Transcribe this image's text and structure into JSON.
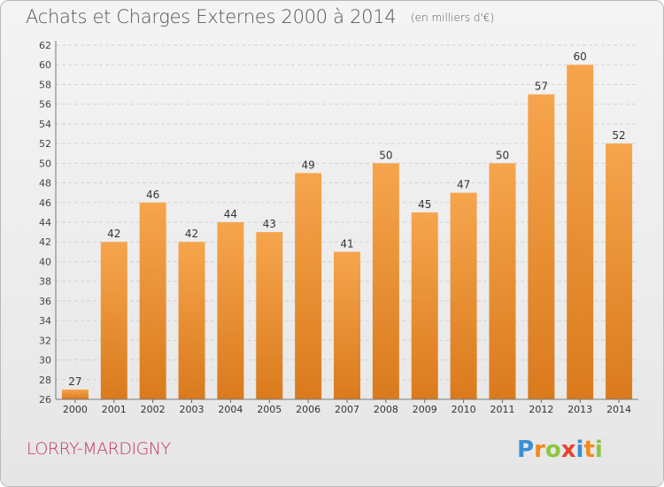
{
  "header": {
    "title": "Achats et Charges Externes 2000 à 2014",
    "unit": "(en milliers d'€)"
  },
  "footer": {
    "place": "LORRY-MARDIGNY",
    "logo_text": "Proxiti"
  },
  "colors": {
    "bar_top": "#f6a54d",
    "bar_bottom": "#da7a1d",
    "place_text": "#c8326a",
    "grid": "#d3d3d3"
  },
  "chart_data": {
    "type": "bar",
    "title": "Achats et Charges Externes 2000 à 2014",
    "subtitle": "(en milliers d'€)",
    "categories": [
      "2000",
      "2001",
      "2002",
      "2003",
      "2004",
      "2005",
      "2006",
      "2007",
      "2008",
      "2009",
      "2010",
      "2011",
      "2012",
      "2013",
      "2014"
    ],
    "values": [
      27,
      42,
      46,
      42,
      44,
      43,
      49,
      41,
      50,
      45,
      47,
      50,
      57,
      60,
      52
    ],
    "ylim": [
      26,
      62
    ],
    "yticks": [
      26,
      28,
      30,
      32,
      34,
      36,
      38,
      40,
      42,
      44,
      46,
      48,
      50,
      52,
      54,
      56,
      58,
      60,
      62
    ],
    "grid": "horizontal dashed",
    "data_labels": true
  }
}
